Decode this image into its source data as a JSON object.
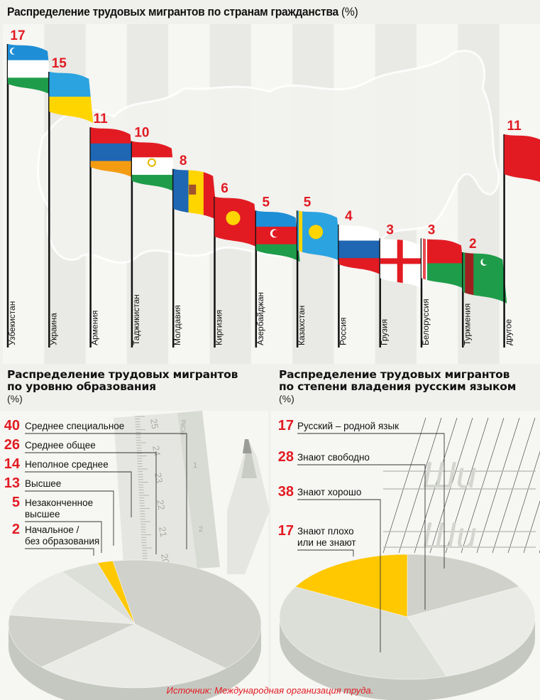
{
  "colors": {
    "accent_red": "#e21b22",
    "highlight_yellow": "#ffc800",
    "pie_dark": "#cfd1ca",
    "pie_mid": "#dcdfd8",
    "pie_light": "#eaebe7"
  },
  "chart_data": [
    {
      "type": "bar",
      "title": "Распределение трудовых мигрантов по странам гражданства",
      "unit": "(%)",
      "categories": [
        "Узбекистан",
        "Украина",
        "Армения",
        "Таджикистан",
        "Молдавия",
        "Киргизия",
        "Азербайджан",
        "Казахстан",
        "Россия",
        "Грузия",
        "Белоруссия",
        "Туркмения",
        "другое"
      ],
      "values": [
        17,
        15,
        11,
        10,
        8,
        6,
        5,
        5,
        4,
        3,
        3,
        2,
        11
      ],
      "flags": [
        {
          "stripes": [
            "#1e8ed6",
            "#ffffff",
            "#1e9c4a"
          ],
          "emblem": "crescent-stars"
        },
        {
          "stripes": [
            "#2aa3e0",
            "#ffd500"
          ]
        },
        {
          "stripes": [
            "#e21b22",
            "#1f66b3",
            "#f39c12"
          ]
        },
        {
          "stripes": [
            "#e21b22",
            "#ffffff",
            "#1e9c4a"
          ],
          "emblem": "crown"
        },
        {
          "vstripes": [
            "#1f66b3",
            "#ffd500",
            "#e21b22"
          ],
          "emblem": "eagle"
        },
        {
          "stripes": [
            "#e21b22"
          ],
          "emblem": "sun"
        },
        {
          "stripes": [
            "#1e8ed6",
            "#e21b22",
            "#1e9c4a"
          ],
          "emblem": "crescent-star"
        },
        {
          "stripes": [
            "#2aa3e0"
          ],
          "emblem": "sun-eagle"
        },
        {
          "stripes": [
            "#ffffff",
            "#1f66b3",
            "#e21b22"
          ]
        },
        {
          "stripes": [
            "#ffffff"
          ],
          "emblem": "five-cross"
        },
        {
          "stripes": [
            "#e21b22",
            "#1e9c4a"
          ],
          "emblem": "ornament"
        },
        {
          "stripes": [
            "#1e9c4a"
          ],
          "emblem": "carpet-crescent"
        },
        {
          "stripes": [
            "#e21b22"
          ]
        }
      ]
    },
    {
      "type": "pie",
      "title": "Распределение трудовых мигрантов по уровню образования",
      "unit": "(%)",
      "slices": [
        {
          "label": "Среднее специальное",
          "value": 40
        },
        {
          "label": "Среднее общее",
          "value": 26
        },
        {
          "label": "Неполное среднее",
          "value": 14
        },
        {
          "label": "Высшее",
          "value": 13
        },
        {
          "label": "Незаконченное высшее",
          "value": 5
        },
        {
          "label": "Начальное / без образования",
          "value": 2
        }
      ]
    },
    {
      "type": "pie",
      "title": "Распределение трудовых мигрантов по степени владения русским языком",
      "unit": "(%)",
      "slices": [
        {
          "label": "Русский – родной язык",
          "value": 17
        },
        {
          "label": "Знают свободно",
          "value": 28
        },
        {
          "label": "Знают хорошо",
          "value": 38
        },
        {
          "label": "Знают плохо или не знают",
          "value": 17
        }
      ]
    }
  ],
  "header": {
    "title": "Распределение трудовых мигрантов по странам гражданства",
    "unit": "(%)"
  },
  "education": {
    "title_line1": "Распределение трудовых мигрантов",
    "title_line2": "по уровню образования",
    "unit": "(%)",
    "items": [
      {
        "num": "40",
        "line1": "Среднее специальное",
        "line2": ""
      },
      {
        "num": "26",
        "line1": "Среднее общее",
        "line2": ""
      },
      {
        "num": "14",
        "line1": "Неполное среднее",
        "line2": ""
      },
      {
        "num": "13",
        "line1": "Высшее",
        "line2": ""
      },
      {
        "num": "5",
        "line1": "Незаконченное",
        "line2": "высшее"
      },
      {
        "num": "2",
        "line1": "Начальное /",
        "line2": "без образования"
      }
    ],
    "ruler_marks": [
      "25",
      "24",
      "23",
      "22",
      "21",
      "20"
    ],
    "ruler_inch_label": "INCH",
    "ruler_inch_marks": [
      "1",
      "2"
    ]
  },
  "russian": {
    "title_line1": "Распределение трудовых мигрантов",
    "title_line2": "по степени владения русским языком",
    "unit": "(%)",
    "items": [
      {
        "num": "17",
        "line1": "Русский – родной язык",
        "line2": ""
      },
      {
        "num": "28",
        "line1": "Знают свободно",
        "line2": ""
      },
      {
        "num": "38",
        "line1": "Знают хорошо",
        "line2": ""
      },
      {
        "num": "17",
        "line1": "Знают плохо",
        "line2": "или не знают"
      }
    ],
    "script_letters": [
      "Ши",
      "Ши"
    ]
  },
  "source": "Источник: Международная организация труда."
}
